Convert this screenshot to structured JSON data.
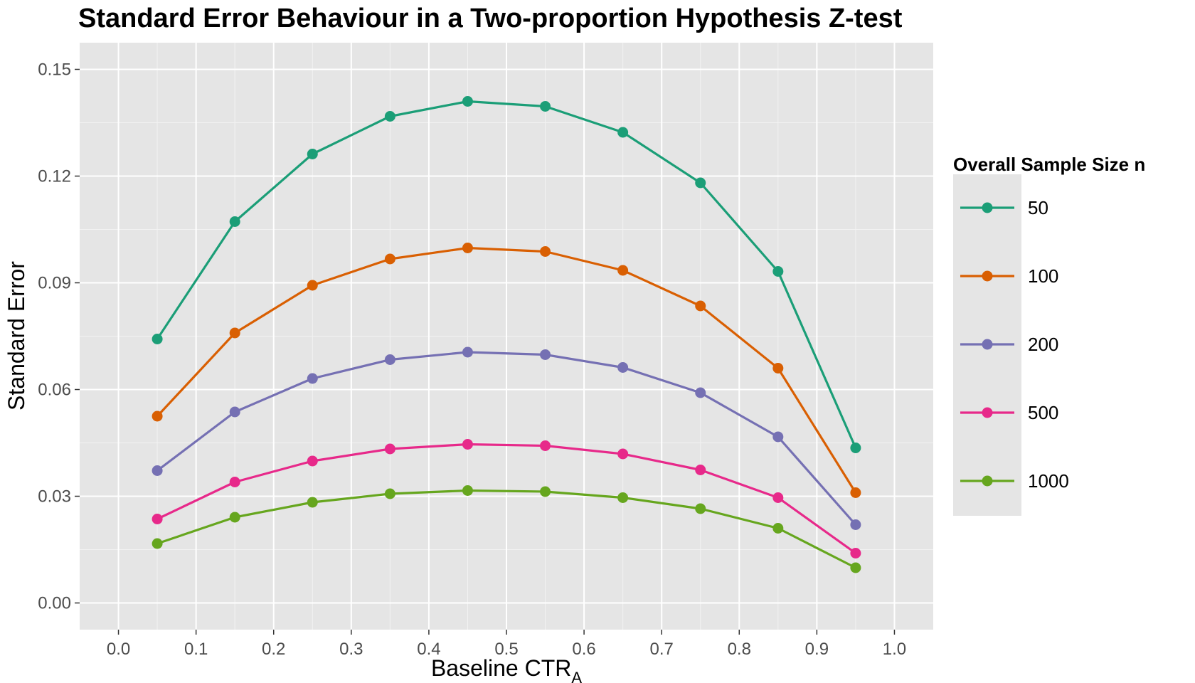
{
  "chart_data": {
    "type": "line",
    "title": "Standard Error Behaviour in a Two-proportion Hypothesis Z-test",
    "xlabel_main": "Baseline CTR",
    "xlabel_sub": "A",
    "ylabel": "Standard Error",
    "xlim": [
      -0.05,
      1.05
    ],
    "ylim": [
      -0.0075,
      0.1575
    ],
    "x_ticks": [
      "0.0",
      "0.1",
      "0.2",
      "0.3",
      "0.4",
      "0.5",
      "0.6",
      "0.7",
      "0.8",
      "0.9",
      "1.0"
    ],
    "y_ticks": [
      "0.00",
      "0.03",
      "0.06",
      "0.09",
      "0.12",
      "0.15"
    ],
    "grid": true,
    "legend": {
      "title": "Overall Sample Size n",
      "position": "right"
    },
    "x": [
      0.05,
      0.15,
      0.25,
      0.35,
      0.45,
      0.55,
      0.65,
      0.75,
      0.85,
      0.95
    ],
    "series": [
      {
        "name": "50",
        "color": "#1b9e77",
        "values": [
          0.0742,
          0.1072,
          0.1262,
          0.1368,
          0.141,
          0.1396,
          0.1323,
          0.1181,
          0.0932,
          0.0436
        ]
      },
      {
        "name": "100",
        "color": "#d95f02",
        "values": [
          0.0525,
          0.0759,
          0.0893,
          0.0967,
          0.0998,
          0.0988,
          0.0935,
          0.0835,
          0.066,
          0.031
        ]
      },
      {
        "name": "200",
        "color": "#7570b3",
        "values": [
          0.0372,
          0.0537,
          0.0631,
          0.0684,
          0.0705,
          0.0698,
          0.0662,
          0.0591,
          0.0467,
          0.022
        ]
      },
      {
        "name": "500",
        "color": "#e7298a",
        "values": [
          0.0236,
          0.034,
          0.0399,
          0.0433,
          0.0446,
          0.0442,
          0.0419,
          0.0374,
          0.0296,
          0.014
        ]
      },
      {
        "name": "1000",
        "color": "#66a61e",
        "values": [
          0.0167,
          0.0241,
          0.0283,
          0.0307,
          0.0316,
          0.0313,
          0.0296,
          0.0265,
          0.021,
          0.0099
        ]
      }
    ]
  }
}
